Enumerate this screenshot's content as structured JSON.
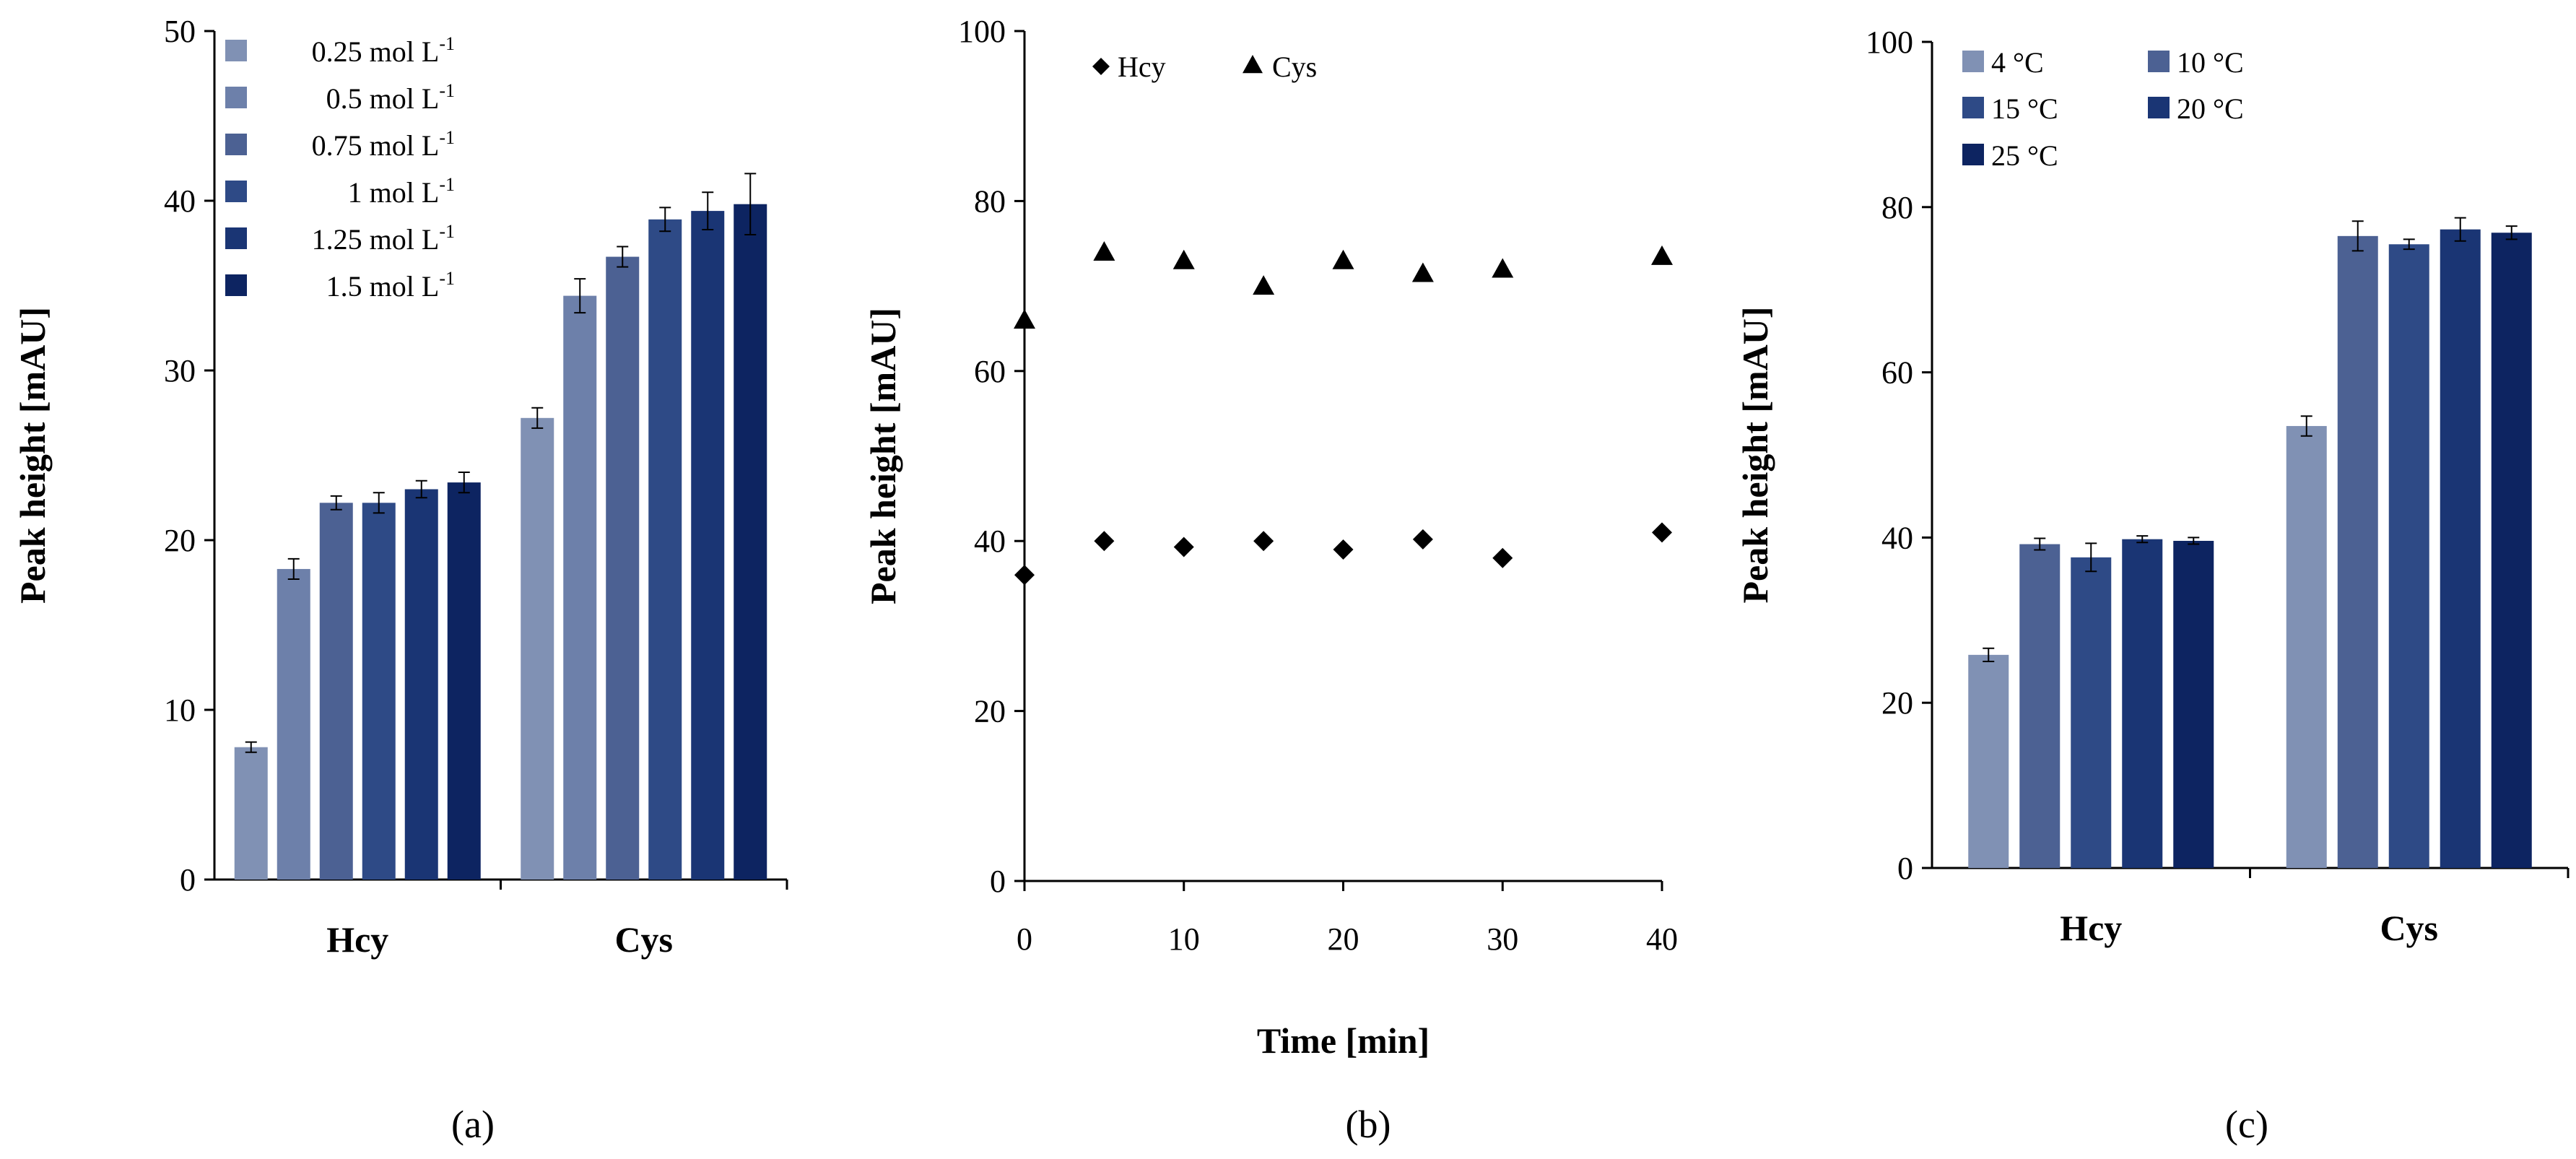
{
  "chart_data": [
    {
      "type": "bar",
      "panel": "(a)",
      "ylabel": "Peak height [mAU]",
      "xlabel": "",
      "ylim": [
        0,
        50
      ],
      "yticks": [
        0,
        10,
        20,
        30,
        40,
        50
      ],
      "categories": [
        "Hcy",
        "Cys"
      ],
      "series": [
        {
          "name": "0.25 mol L",
          "superscript": "-1",
          "color": "#8091b4",
          "values": [
            7.8,
            27.2
          ],
          "errors": [
            0.3,
            0.6
          ]
        },
        {
          "name": "0.5 mol L",
          "superscript": "-1",
          "color": "#6d80aa",
          "values": [
            18.3,
            34.4
          ],
          "errors": [
            0.6,
            1.0
          ]
        },
        {
          "name": "0.75 mol L",
          "superscript": "-1",
          "color": "#4c6193",
          "values": [
            22.2,
            36.7
          ],
          "errors": [
            0.4,
            0.6
          ]
        },
        {
          "name": "1 mol L",
          "superscript": "-1",
          "color": "#2e4a86",
          "values": [
            22.2,
            38.9
          ],
          "errors": [
            0.6,
            0.7
          ]
        },
        {
          "name": "1.25 mol L",
          "superscript": "-1",
          "color": "#1a3574",
          "values": [
            23.0,
            39.4
          ],
          "errors": [
            0.5,
            1.1
          ]
        },
        {
          "name": "1.5 mol L",
          "superscript": "-1",
          "color": "#0d2461",
          "values": [
            23.4,
            39.8
          ],
          "errors": [
            0.6,
            1.8
          ]
        }
      ]
    },
    {
      "type": "scatter",
      "panel": "(b)",
      "xlabel": "Time [min]",
      "ylabel": "Peak height [mAU]",
      "xlim": [
        0,
        40
      ],
      "ylim": [
        0,
        100
      ],
      "xticks": [
        0,
        10,
        20,
        30,
        40
      ],
      "yticks": [
        0,
        20,
        40,
        60,
        80,
        100
      ],
      "series": [
        {
          "name": "Hcy",
          "marker": "diamond",
          "x": [
            0,
            5,
            10,
            15,
            20,
            25,
            30,
            40
          ],
          "y": [
            36.0,
            40.0,
            39.3,
            40.0,
            39.0,
            40.2,
            38.0,
            41.0
          ]
        },
        {
          "name": "Cys",
          "marker": "triangle",
          "x": [
            0,
            5,
            10,
            15,
            20,
            25,
            30,
            40
          ],
          "y": [
            66.0,
            74.0,
            73.0,
            70.0,
            73.0,
            71.5,
            72.0,
            73.5
          ]
        }
      ]
    },
    {
      "type": "bar",
      "panel": "(c)",
      "ylabel": "Peak height [mAU]",
      "xlabel": "",
      "ylim": [
        0,
        100
      ],
      "yticks": [
        0,
        20,
        40,
        60,
        80,
        100
      ],
      "categories": [
        "Hcy",
        "Cys"
      ],
      "series": [
        {
          "name": "4 °C",
          "color": "#8091b4",
          "values": [
            25.8,
            53.5
          ],
          "errors": [
            0.8,
            1.2
          ]
        },
        {
          "name": "10 °C",
          "color": "#4c6193",
          "values": [
            39.2,
            76.5
          ],
          "errors": [
            0.7,
            1.8
          ]
        },
        {
          "name": "15 °C",
          "color": "#2e4a86",
          "values": [
            37.6,
            75.5
          ],
          "errors": [
            1.7,
            0.6
          ]
        },
        {
          "name": "20 °C",
          "color": "#1a3574",
          "values": [
            39.8,
            77.3
          ],
          "errors": [
            0.4,
            1.4
          ]
        },
        {
          "name": "25 °C",
          "color": "#0d2461",
          "values": [
            39.6,
            76.9
          ],
          "errors": [
            0.4,
            0.8
          ]
        }
      ]
    }
  ]
}
